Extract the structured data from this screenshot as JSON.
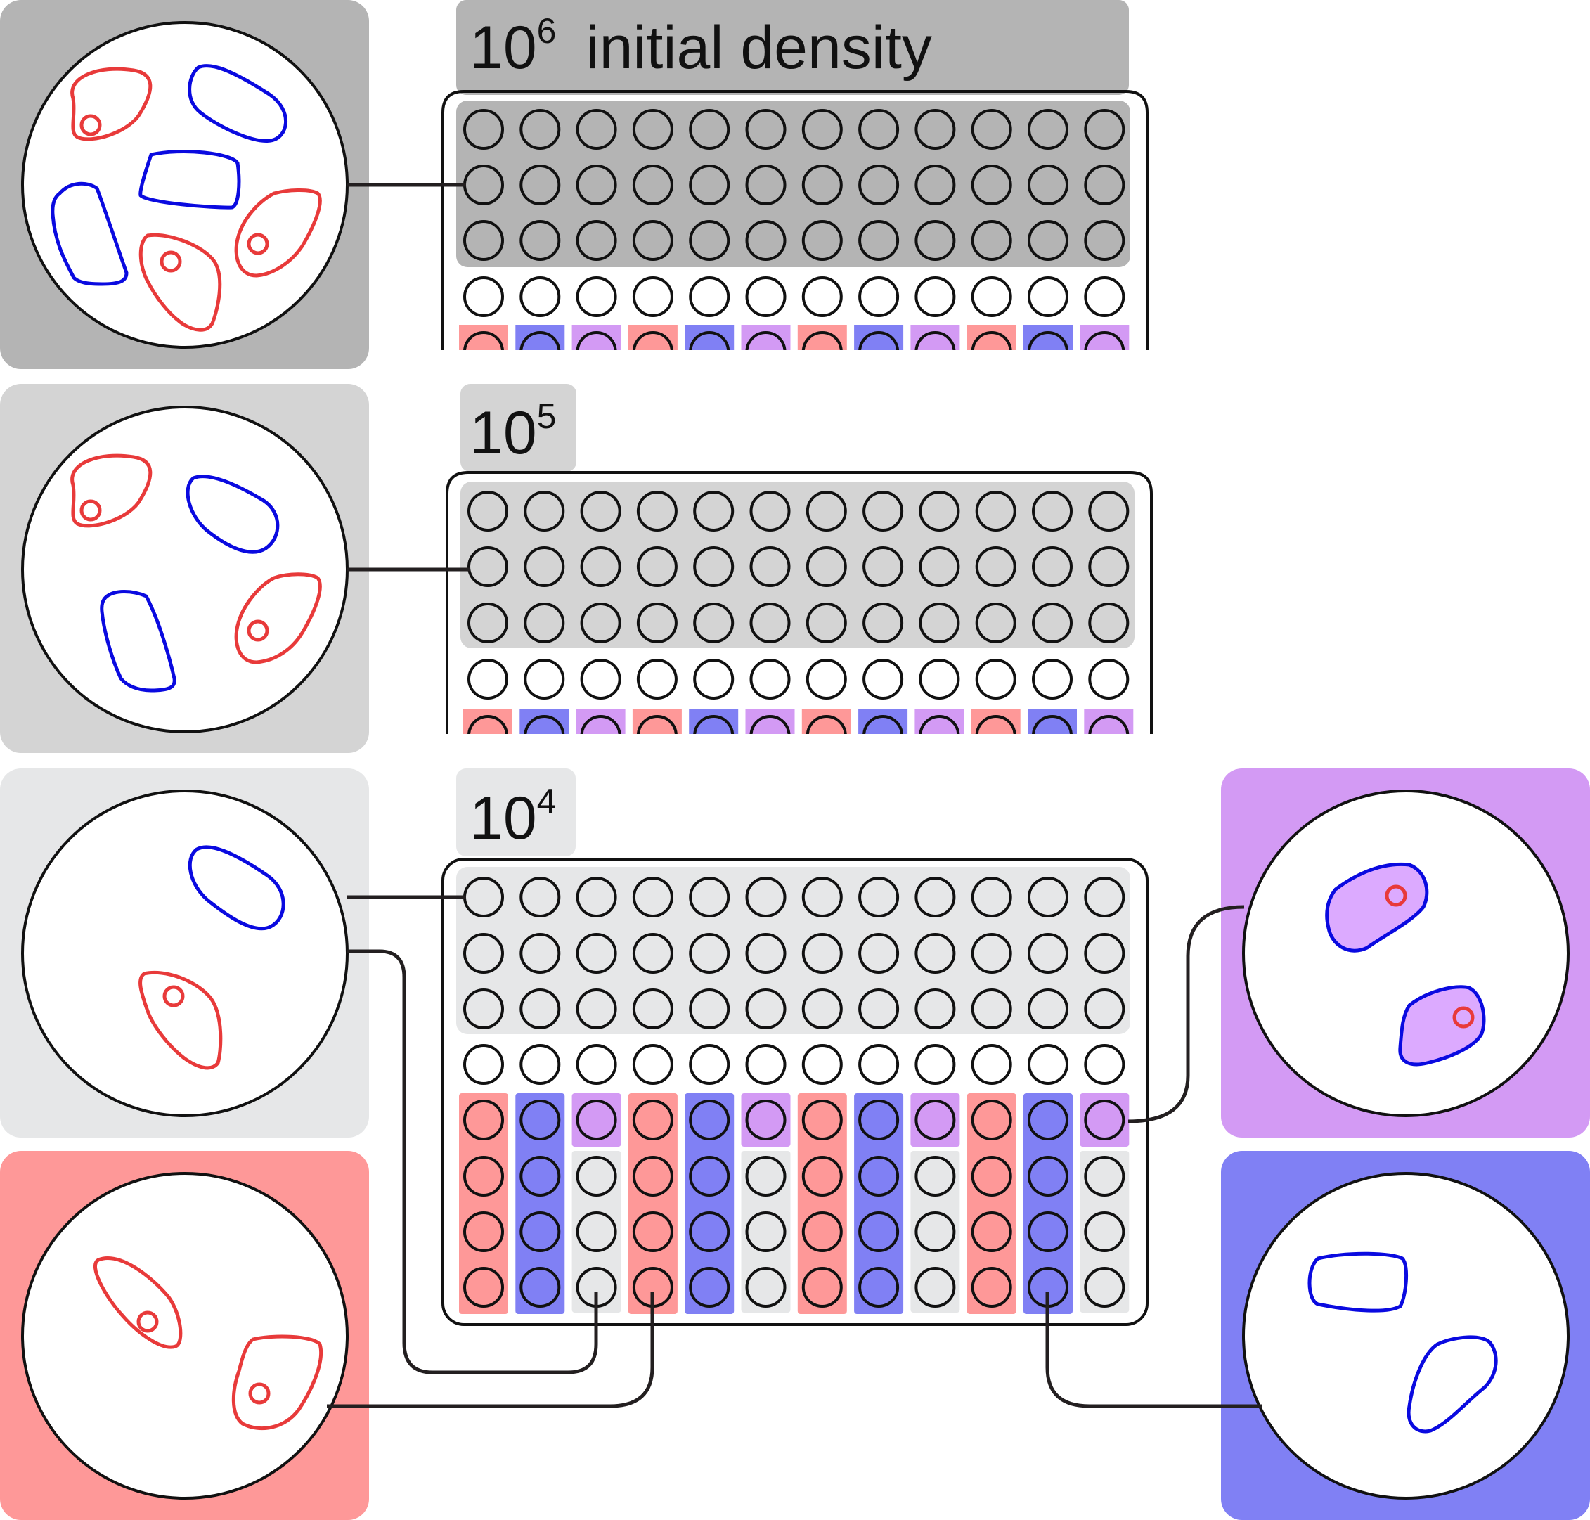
{
  "labels": {
    "density_1_base": "10",
    "density_1_exp": "6",
    "density_1_suffix": "initial density",
    "density_2_base": "10",
    "density_2_exp": "5",
    "density_3_base": "10",
    "density_3_exp": "4"
  },
  "plate": {
    "columns": 12,
    "column_pattern": [
      "red",
      "blue",
      "purple"
    ]
  },
  "colors": {
    "level_1_bg": "#b4b4b4",
    "level_2_bg": "#d4d4d4",
    "level_3_bg": "#e6e7e8",
    "red_bg": "#fe9898",
    "blue_bg": "#8080f4",
    "purple_bg": "#d39af4",
    "red_cell": "#e83a3a",
    "blue_cell": "#0a0ae0",
    "purple_cell_fill": "#dcaaff",
    "line": "#231f20",
    "well_outline": "#111111"
  }
}
